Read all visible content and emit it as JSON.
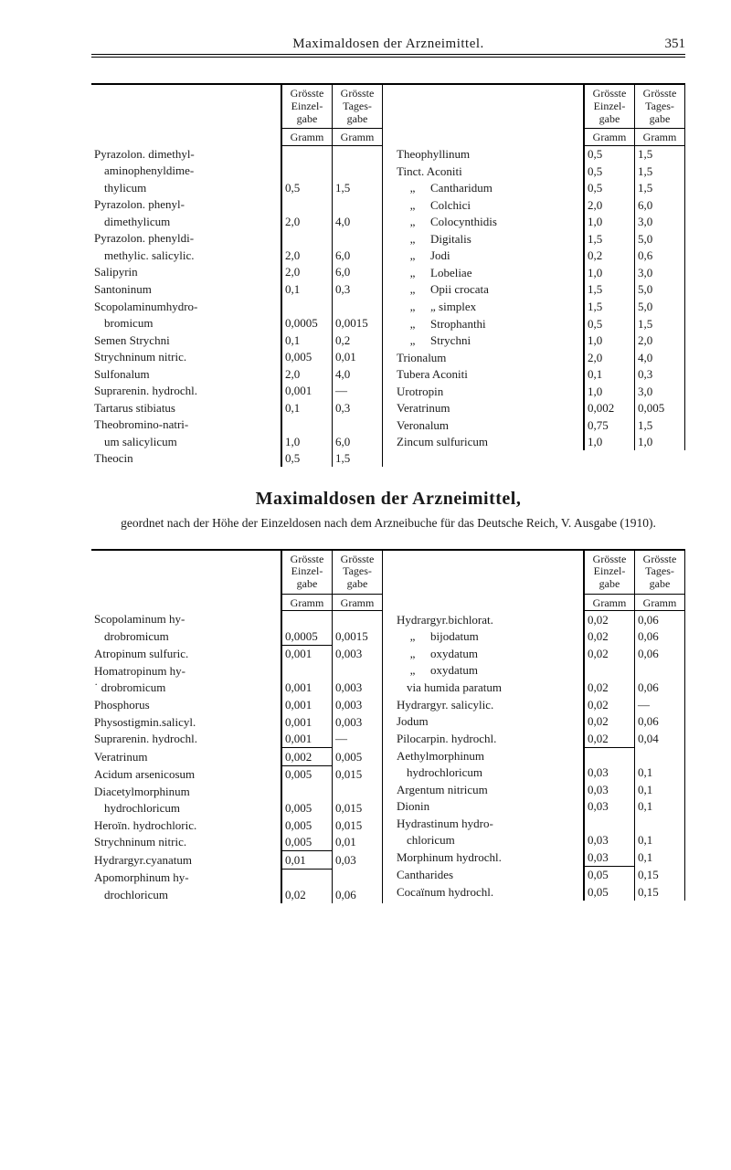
{
  "page": {
    "running_title": "Maximaldosen der Arzneimittel.",
    "number": "351"
  },
  "headers": {
    "einzel": "Grösste Einzel-gabe",
    "tages": "Grösste Tages-gabe",
    "gramm": "Gramm"
  },
  "section": {
    "title": "Maximaldosen der Arzneimittel,",
    "subtitle": "geordnet nach der Höhe der Einzeldosen nach dem Arzneibuche für das Deutsche Reich, V. Ausgabe (1910)."
  },
  "table1": {
    "left": [
      {
        "name": "Pyrazolon. dimethyl-",
        "e": "",
        "t": ""
      },
      {
        "name": "aminophenyldime-",
        "e": "",
        "t": "",
        "indent": 1
      },
      {
        "name": "thylicum",
        "e": "0,5",
        "t": "1,5",
        "indent": 1
      },
      {
        "name": "Pyrazolon. phenyl-",
        "e": "",
        "t": ""
      },
      {
        "name": "dimethylicum",
        "e": "2,0",
        "t": "4,0",
        "indent": 1
      },
      {
        "name": "Pyrazolon. phenyldi-",
        "e": "",
        "t": ""
      },
      {
        "name": "methylic. salicylic.",
        "e": "2,0",
        "t": "6,0",
        "indent": 1
      },
      {
        "name": "Salipyrin",
        "e": "2,0",
        "t": "6,0"
      },
      {
        "name": "Santoninum",
        "e": "0,1",
        "t": "0,3"
      },
      {
        "name": "Scopolaminumhydro-",
        "e": "",
        "t": ""
      },
      {
        "name": "bromicum",
        "e": "0,0005",
        "t": "0,0015",
        "indent": 1
      },
      {
        "name": "Semen Strychni",
        "e": "0,1",
        "t": "0,2"
      },
      {
        "name": "Strychninum nitric.",
        "e": "0,005",
        "t": "0,01"
      },
      {
        "name": "Sulfonalum",
        "e": "2,0",
        "t": "4,0"
      },
      {
        "name": "Suprarenin. hydrochl.",
        "e": "0,001",
        "t": "—"
      },
      {
        "name": "Tartarus stibiatus",
        "e": "0,1",
        "t": "0,3"
      },
      {
        "name": "Theobromino-natri-",
        "e": "",
        "t": ""
      },
      {
        "name": "um salicylicum",
        "e": "1,0",
        "t": "6,0",
        "indent": 1
      },
      {
        "name": "Theocin",
        "e": "0,5",
        "t": "1,5"
      }
    ],
    "right": [
      {
        "name": "Theophyllinum",
        "e": "0,5",
        "t": "1,5"
      },
      {
        "name": "Tinct. Aconiti",
        "e": "0,5",
        "t": "1,5"
      },
      {
        "name": "Cantharidum",
        "e": "0,5",
        "t": "1,5",
        "ditto": true,
        "indent": 1
      },
      {
        "name": "Colchici",
        "e": "2,0",
        "t": "6,0",
        "ditto": true,
        "indent": 1
      },
      {
        "name": "Colocynthidis",
        "e": "1,0",
        "t": "3,0",
        "ditto": true,
        "indent": 1
      },
      {
        "name": "Digitalis",
        "e": "1,5",
        "t": "5,0",
        "ditto": true,
        "indent": 1
      },
      {
        "name": "Jodi",
        "e": "0,2",
        "t": "0,6",
        "ditto": true,
        "indent": 1
      },
      {
        "name": "Lobeliae",
        "e": "1,0",
        "t": "3,0",
        "ditto": true,
        "indent": 1
      },
      {
        "name": "Opii crocata",
        "e": "1,5",
        "t": "5,0",
        "ditto": true,
        "indent": 1
      },
      {
        "name": "„      simplex",
        "e": "1,5",
        "t": "5,0",
        "ditto": true,
        "indent": 1
      },
      {
        "name": "Strophanthi",
        "e": "0,5",
        "t": "1,5",
        "ditto": true,
        "indent": 1
      },
      {
        "name": "Strychni",
        "e": "1,0",
        "t": "2,0",
        "ditto": true,
        "indent": 1
      },
      {
        "name": "Trionalum",
        "e": "2,0",
        "t": "4,0"
      },
      {
        "name": "Tubera Aconiti",
        "e": "0,1",
        "t": "0,3"
      },
      {
        "name": "Urotropin",
        "e": "1,0",
        "t": "3,0"
      },
      {
        "name": "Veratrinum",
        "e": "0,002",
        "t": "0,005"
      },
      {
        "name": "Veronalum",
        "e": "0,75",
        "t": "1,5"
      },
      {
        "name": "Zincum sulfuricum",
        "e": "1,0",
        "t": "1,0"
      }
    ]
  },
  "table2": {
    "left": [
      {
        "name": "Scopolaminum hy-",
        "e": "",
        "t": ""
      },
      {
        "name": "drobromicum",
        "e": "0,0005",
        "t": "0,0015",
        "indent": 1
      },
      {
        "name": "Atropinum sulfuric.",
        "e": "0,001",
        "t": "0,003",
        "boxtop": true
      },
      {
        "name": "Homatropinum hy-",
        "e": "",
        "t": ""
      },
      {
        "name": "˙ drobromicum",
        "e": "0,001",
        "t": "0,003",
        "indent": 0
      },
      {
        "name": "Phosphorus",
        "e": "0,001",
        "t": "0,003"
      },
      {
        "name": "Physostigmin.salicyl.",
        "e": "0,001",
        "t": "0,003"
      },
      {
        "name": "Suprarenin. hydrochl.",
        "e": "0,001",
        "t": "—"
      },
      {
        "name": "Veratrinum",
        "e": "0,002",
        "t": "0,005",
        "boxtop": true
      },
      {
        "name": "Acidum arsenicosum",
        "e": "0,005",
        "t": "0,015",
        "boxtop": true
      },
      {
        "name": "Diacetylmorphinum",
        "e": "",
        "t": ""
      },
      {
        "name": "hydrochloricum",
        "e": "0,005",
        "t": "0,015",
        "indent": 1
      },
      {
        "name": "Heroïn. hydrochloric.",
        "e": "0,005",
        "t": "0,015"
      },
      {
        "name": "Strychninum nitric.",
        "e": "0,005",
        "t": "0,01"
      },
      {
        "name": "Hydrargyr.cyanatum",
        "e": "0,01",
        "t": "0,03",
        "boxtop": true
      },
      {
        "name": "Apomorphinum hy-",
        "e": "",
        "t": "",
        "boxtop": true
      },
      {
        "name": "drochloricum",
        "e": "0,02",
        "t": "0,06",
        "indent": 1
      }
    ],
    "right": [
      {
        "name": "Hydrargyr.bichlorat.",
        "e": "0,02",
        "t": "0,06"
      },
      {
        "name": "bijodatum",
        "e": "0,02",
        "t": "0,06",
        "ditto": true,
        "indent": 1
      },
      {
        "name": "oxydatum",
        "e": "0,02",
        "t": "0,06",
        "ditto": true,
        "indent": 1
      },
      {
        "name": "oxydatum",
        "e": "",
        "t": "",
        "ditto": true,
        "indent": 1
      },
      {
        "name": "via humida paratum",
        "e": "0,02",
        "t": "0,06",
        "indent": 1
      },
      {
        "name": "Hydrargyr. salicylic.",
        "e": "0,02",
        "t": "—"
      },
      {
        "name": "Jodum",
        "e": "0,02",
        "t": "0,06"
      },
      {
        "name": "Pilocarpin. hydrochl.",
        "e": "0,02",
        "t": "0,04"
      },
      {
        "name": "Aethylmorphinum",
        "e": "",
        "t": "",
        "boxtop": true
      },
      {
        "name": "hydrochloricum",
        "e": "0,03",
        "t": "0,1",
        "indent": 1
      },
      {
        "name": "Argentum nitricum",
        "e": "0,03",
        "t": "0,1"
      },
      {
        "name": "Dionin",
        "e": "0,03",
        "t": "0,1"
      },
      {
        "name": "Hydrastinum hydro-",
        "e": "",
        "t": ""
      },
      {
        "name": "chloricum",
        "e": "0,03",
        "t": "0,1",
        "indent": 1
      },
      {
        "name": "Morphinum hydrochl.",
        "e": "0,03",
        "t": "0,1"
      },
      {
        "name": "Cantharides",
        "e": "0,05",
        "t": "0,15",
        "boxtop": true
      },
      {
        "name": "Cocaïnum hydrochl.",
        "e": "0,05",
        "t": "0,15"
      }
    ]
  }
}
